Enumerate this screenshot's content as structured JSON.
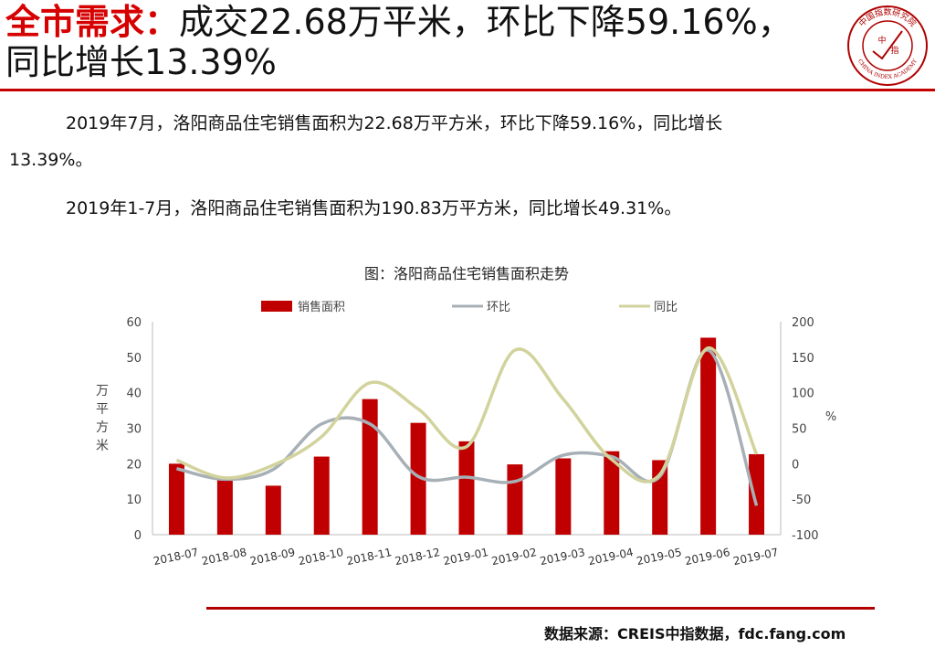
{
  "slide": {
    "title_highlight": "全市需求：",
    "title_line1_rest": "成交22.68万平米，环比下降59.16%，",
    "title_line2": "同比增长13.39%",
    "logo": {
      "text_top": "中国指数研究院",
      "text_bottom": "CHINA INDEX ACADEMY",
      "center_a": "中",
      "center_b": "指"
    },
    "paragraph1_line1": "2019年7月，洛阳商品住宅销售面积为22.68万平方米，环比下降59.16%，同比增长",
    "paragraph1_line2": "13.39%。",
    "paragraph2": "2019年1-7月，洛阳商品住宅销售面积为190.83万平方米，同比增长49.31%。",
    "source": "数据来源：CREIS中指数据，fdc.fang.com",
    "colors": {
      "accent_red": "#c40000",
      "bar": "#c00000",
      "mom_line": "#a7b0b6",
      "yoy_line": "#d2d39c"
    }
  },
  "chart_data": {
    "type": "bar",
    "title": "图：洛阳商品住宅销售面积走势",
    "categories": [
      "2018-07",
      "2018-08",
      "2018-09",
      "2018-10",
      "2018-11",
      "2018-12",
      "2019-01",
      "2019-02",
      "2019-03",
      "2019-04",
      "2019-05",
      "2019-06",
      "2019-07"
    ],
    "ylabel": "万平方米",
    "y2label": "%",
    "ylim": [
      0,
      60
    ],
    "yticks": [
      "0",
      "10",
      "20",
      "30",
      "40",
      "50",
      "60"
    ],
    "y2lim": [
      -100,
      200
    ],
    "y2ticks": [
      "-100",
      "-50",
      "0",
      "50",
      "100",
      "150",
      "200"
    ],
    "grid": false,
    "legend_position": "top",
    "series": [
      {
        "name": "销售面积",
        "type": "bar",
        "axis": "left",
        "color": "#c00000",
        "values": [
          20.0,
          15.5,
          13.8,
          22.0,
          38.2,
          31.5,
          26.3,
          19.8,
          21.5,
          23.5,
          21.0,
          55.5,
          22.68
        ]
      },
      {
        "name": "环比",
        "type": "line",
        "axis": "right",
        "color": "#a7b0b6",
        "values": [
          -7,
          -22,
          -8,
          56,
          56,
          -18,
          -19,
          -25,
          12,
          10,
          -18,
          160,
          -59.16
        ]
      },
      {
        "name": "同比",
        "type": "line",
        "axis": "right",
        "color": "#d2d39c",
        "values": [
          5,
          -20,
          -2,
          38,
          114,
          77,
          24,
          160,
          91,
          6,
          -15,
          163,
          13.39
        ]
      }
    ]
  }
}
